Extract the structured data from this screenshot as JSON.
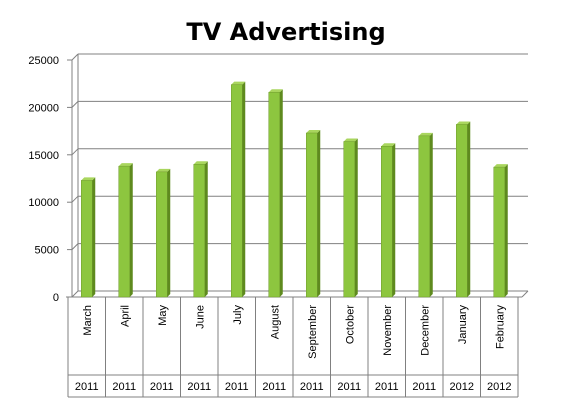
{
  "chart_data": {
    "type": "bar",
    "title": "TV Advertising",
    "xlabel": "",
    "ylabel": "",
    "ylim": [
      0,
      25000
    ],
    "yticks": [
      0,
      5000,
      10000,
      15000,
      20000,
      25000
    ],
    "grid": true,
    "legend": "none",
    "categories": [
      {
        "month": "March",
        "year": "2011"
      },
      {
        "month": "April",
        "year": "2011"
      },
      {
        "month": "May",
        "year": "2011"
      },
      {
        "month": "June",
        "year": "2011"
      },
      {
        "month": "July",
        "year": "2011"
      },
      {
        "month": "August",
        "year": "2011"
      },
      {
        "month": "September",
        "year": "2011"
      },
      {
        "month": "October",
        "year": "2011"
      },
      {
        "month": "November",
        "year": "2011"
      },
      {
        "month": "December",
        "year": "2011"
      },
      {
        "month": "January",
        "year": "2012"
      },
      {
        "month": "February",
        "year": "2012"
      }
    ],
    "values": [
      12300,
      13800,
      13200,
      14000,
      22400,
      21600,
      17300,
      16400,
      15900,
      17000,
      18200,
      13700
    ],
    "colors": {
      "bar_front": "#8DC63F",
      "bar_side": "#5E8A1E",
      "bar_top": "#A9D65E",
      "grid": "#808080",
      "axis": "#808080"
    }
  }
}
